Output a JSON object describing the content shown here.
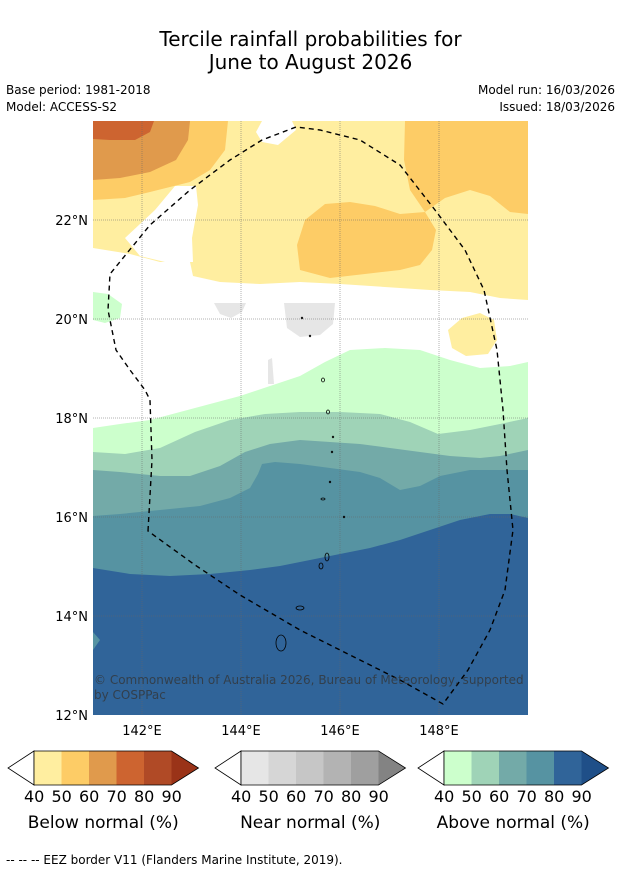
{
  "title_line1": "Tercile rainfall probabilities for",
  "title_line2": "June to August 2026",
  "base_period": "Base period: 1981-2018",
  "model": "Model: ACCESS-S2",
  "model_run": "Model run: 16/03/2026",
  "issued": "Issued: 18/03/2026",
  "map": {
    "lat_labels": [
      "22°N",
      "20°N",
      "18°N",
      "16°N",
      "14°N",
      "12°N"
    ],
    "lon_labels": [
      "142°E",
      "144°E",
      "146°E",
      "148°E"
    ],
    "copyright_line1": "© Commonwealth of Australia 2026, Bureau of Meteorology, supported",
    "copyright_line2": "by COSPPac"
  },
  "legends": [
    {
      "caption": "Below normal (%)",
      "ticks": [
        "40",
        "50",
        "60",
        "70",
        "80",
        "90"
      ],
      "colors": [
        "#ffeea0",
        "#fdcc66",
        "#e09a4c",
        "#cd6430",
        "#b04a26",
        "#9a3318"
      ]
    },
    {
      "caption": "Near normal (%)",
      "ticks": [
        "40",
        "50",
        "60",
        "70",
        "80",
        "90"
      ],
      "colors": [
        "#e6e6e6",
        "#d6d6d6",
        "#c6c6c6",
        "#b3b3b3",
        "#9f9f9f",
        "#838383"
      ]
    },
    {
      "caption": "Above normal (%)",
      "ticks": [
        "40",
        "50",
        "60",
        "70",
        "80",
        "90"
      ],
      "colors": [
        "#ccffcc",
        "#9fd3b7",
        "#73aaa8",
        "#5693a2",
        "#306499",
        "#1f4f88"
      ]
    }
  ],
  "footer": "--  --  -- EEZ border V11 (Flanders Marine Institute, 2019)."
}
